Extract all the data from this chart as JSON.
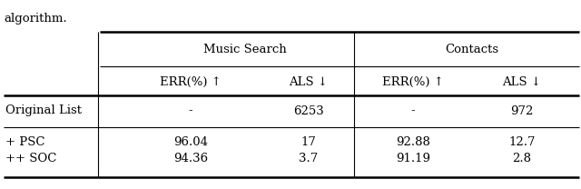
{
  "caption": "algorithm.",
  "group_headers": [
    "Music Search",
    "Contacts"
  ],
  "sub_headers": [
    "ERR(%) ↑",
    "ALS ↓",
    "ERR(%) ↑",
    "ALS ↓"
  ],
  "rows": [
    {
      "label": "Original List",
      "values": [
        "-",
        "6253",
        "-",
        "972"
      ]
    },
    {
      "label": "+ PSC",
      "values": [
        "96.04",
        "17",
        "92.88",
        "12.7"
      ]
    },
    {
      "label": "++ SOC",
      "values": [
        "94.36",
        "3.7",
        "91.19",
        "2.8"
      ]
    }
  ],
  "background_color": "#ffffff",
  "font_size": 9.5,
  "font_family": "DejaVu Serif"
}
